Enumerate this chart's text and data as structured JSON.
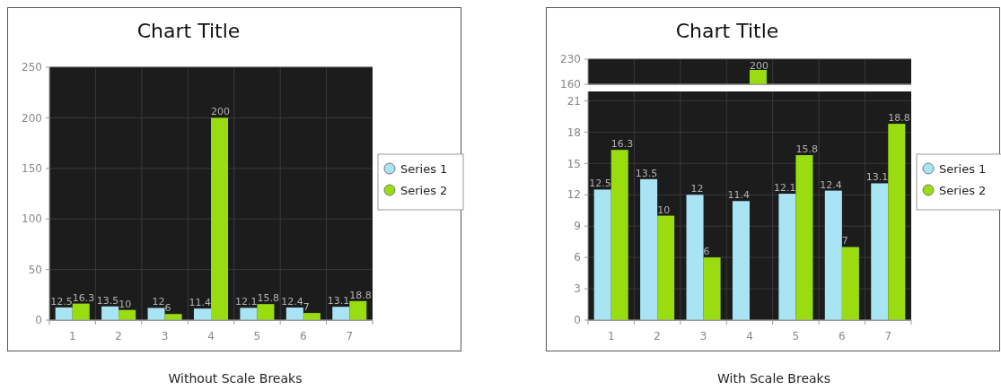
{
  "chart_data": [
    {
      "type": "bar",
      "title": "Chart Title",
      "annotations": [
        "Without Scale Breaks"
      ],
      "categories": [
        "1",
        "2",
        "3",
        "4",
        "5",
        "6",
        "7"
      ],
      "series": [
        {
          "name": "Series 1",
          "color": "#a8e4f4",
          "values": [
            12.5,
            13.5,
            12,
            11.4,
            12.1,
            12.4,
            13.1
          ]
        },
        {
          "name": "Series 2",
          "color": "#99dd11",
          "values": [
            16.3,
            10,
            6,
            200,
            15.8,
            7,
            18.8
          ]
        }
      ],
      "ylim": [
        0,
        250
      ],
      "yticks": [
        0,
        50,
        100,
        150,
        200,
        250
      ],
      "grid": true,
      "legend": "right",
      "data_labels": true
    },
    {
      "type": "bar",
      "title": "Chart Title",
      "categories": [
        null,
        null,
        null,
        null,
        null,
        null,
        null
      ],
      "series": [
        {
          "values": [
            null,
            null,
            null,
            null,
            null,
            null,
            null
          ]
        },
        {
          "color": "#99dd11",
          "values": [
            null,
            null,
            null,
            200,
            null,
            null,
            null
          ]
        }
      ],
      "ylim": [
        160,
        230
      ],
      "yticks": [
        160,
        230
      ],
      "tick_labels": "y",
      "grid": true,
      "data_labels": true
    },
    {
      "type": "bar",
      "annotations": [
        "With Scale Breaks"
      ],
      "categories": [
        "1",
        "2",
        "3",
        "4",
        "5",
        "6",
        "7"
      ],
      "series": [
        {
          "name": "Series 1",
          "color": "#a8e4f4",
          "values": [
            12.5,
            13.5,
            12,
            11.4,
            12.1,
            12.4,
            13.1
          ]
        },
        {
          "name": "Series 2",
          "color": "#99dd11",
          "values": [
            16.3,
            10,
            6,
            null,
            15.8,
            7,
            18.8
          ]
        }
      ],
      "ylim": [
        0,
        21.9
      ],
      "yticks": [
        0,
        3,
        6,
        9,
        12,
        15,
        18,
        21
      ],
      "grid": true,
      "legend": "right",
      "data_labels": true
    }
  ]
}
